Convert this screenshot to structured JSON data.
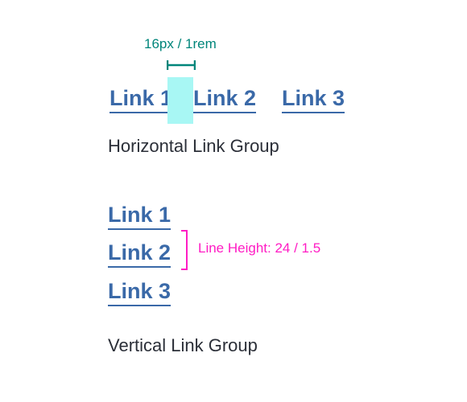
{
  "colors": {
    "link": "#3a69a8",
    "text": "#2b2f38",
    "spacing_annotation": "#00857a",
    "spacing_highlight": "#a8f7f4",
    "line_height_annotation": "#ff1cc4"
  },
  "horizontal_group": {
    "spacing_label": "16px / 1rem",
    "links": [
      "Link 1",
      "Link 2",
      "Link 3"
    ],
    "caption": "Horizontal Link Group"
  },
  "vertical_group": {
    "links": [
      "Link 1",
      "Link 2",
      "Link 3"
    ],
    "line_height_label": "Line Height: 24 / 1.5",
    "caption": "Vertical Link Group"
  }
}
